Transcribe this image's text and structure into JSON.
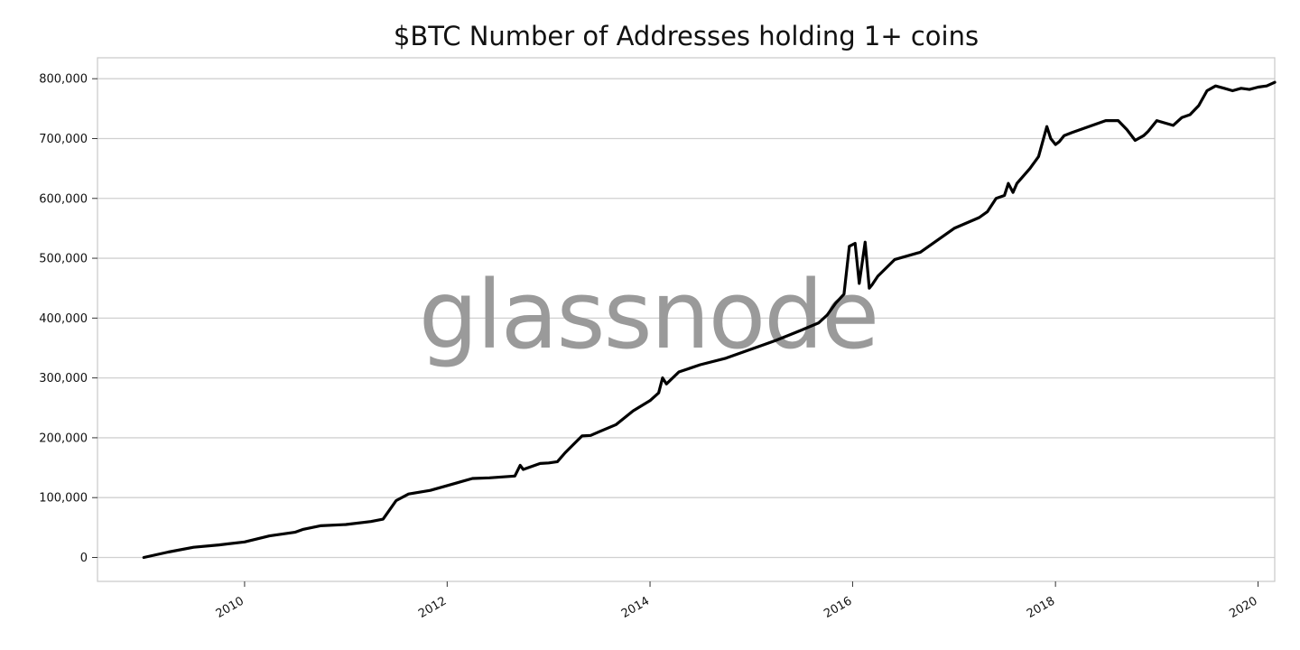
{
  "chart_data": {
    "type": "line",
    "title": "$BTC Number of Addresses holding 1+ coins",
    "xlabel": "",
    "ylabel": "",
    "watermark": "glassnode",
    "x_ticks": [
      "2010",
      "2012",
      "2014",
      "2016",
      "2018",
      "2020"
    ],
    "y_ticks": [
      "0",
      "100,000",
      "200,000",
      "300,000",
      "400,000",
      "500,000",
      "600,000",
      "700,000",
      "800,000"
    ],
    "xlim": [
      "2008-07-20",
      "2020-03-01"
    ],
    "ylim": [
      -40000,
      835000
    ],
    "grid": "horizontal",
    "legend": "none",
    "colors": {
      "line": "#000000",
      "grid": "#d0d0d0",
      "axes": "#c8c8c8",
      "watermark": "#9a9a9a"
    },
    "series": [
      {
        "x": [
          "2009-01-03",
          "2009-04-01",
          "2009-07-01",
          "2009-10-01",
          "2010-01-01",
          "2010-04-01",
          "2010-07-01",
          "2010-08-01",
          "2010-10-01",
          "2011-01-01",
          "2011-04-01",
          "2011-05-15",
          "2011-07-01",
          "2011-08-15",
          "2011-11-01",
          "2012-01-01",
          "2012-04-01",
          "2012-06-01",
          "2012-09-01",
          "2012-09-20",
          "2012-10-01",
          "2012-12-01",
          "2013-01-01",
          "2013-02-01",
          "2013-03-01",
          "2013-05-01",
          "2013-06-01",
          "2013-07-01",
          "2013-09-01",
          "2013-11-01",
          "2014-01-01",
          "2014-02-01",
          "2014-02-15",
          "2014-03-01",
          "2014-04-15",
          "2014-07-01",
          "2014-10-01",
          "2015-01-01",
          "2015-04-01",
          "2015-07-01",
          "2015-09-01",
          "2015-10-01",
          "2015-11-01",
          "2015-12-01",
          "2015-12-20",
          "2016-01-10",
          "2016-01-25",
          "2016-02-15",
          "2016-03-01",
          "2016-03-10",
          "2016-04-01",
          "2016-06-01",
          "2016-09-01",
          "2016-11-01",
          "2017-01-01",
          "2017-04-01",
          "2017-05-01",
          "2017-06-01",
          "2017-07-01",
          "2017-07-15",
          "2017-08-01",
          "2017-08-15",
          "2017-10-01",
          "2017-11-01",
          "2017-12-01",
          "2017-12-15",
          "2018-01-01",
          "2018-01-15",
          "2018-02-01",
          "2018-03-01",
          "2018-05-01",
          "2018-07-01",
          "2018-08-15",
          "2018-09-15",
          "2018-10-15",
          "2018-11-15",
          "2018-12-01",
          "2019-01-01",
          "2019-03-01",
          "2019-04-01",
          "2019-05-01",
          "2019-06-01",
          "2019-07-01",
          "2019-08-01",
          "2019-09-01",
          "2019-10-01",
          "2019-11-01",
          "2019-12-01",
          "2020-01-01",
          "2020-02-01",
          "2020-03-01"
        ],
        "values": [
          0,
          9000,
          17000,
          21000,
          26000,
          36000,
          42000,
          47000,
          53000,
          55000,
          60000,
          64000,
          95000,
          106000,
          112000,
          120000,
          132000,
          133000,
          136000,
          154000,
          147000,
          157000,
          158000,
          160000,
          175000,
          203000,
          204000,
          210000,
          222000,
          245000,
          262000,
          275000,
          300000,
          290000,
          310000,
          322000,
          333000,
          348000,
          363000,
          380000,
          392000,
          405000,
          425000,
          440000,
          520000,
          525000,
          458000,
          527000,
          450000,
          455000,
          470000,
          498000,
          510000,
          530000,
          550000,
          568000,
          578000,
          600000,
          605000,
          625000,
          610000,
          625000,
          650000,
          670000,
          720000,
          700000,
          690000,
          695000,
          705000,
          710000,
          720000,
          730000,
          730000,
          715000,
          697000,
          705000,
          712000,
          730000,
          722000,
          735000,
          740000,
          755000,
          780000,
          788000,
          784000,
          780000,
          784000,
          782000,
          786000,
          788000,
          794000
        ]
      }
    ]
  }
}
